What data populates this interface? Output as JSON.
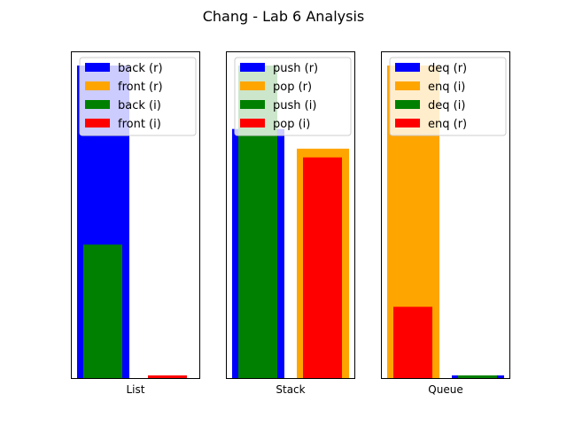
{
  "figure": {
    "title": "Chang - Lab 6 Analysis"
  },
  "chart_data": [
    {
      "type": "bar",
      "xlabel": "List",
      "ylim": [
        0,
        1
      ],
      "yticks_shown": false,
      "legend_position": "top-right",
      "series": [
        {
          "name": "back (r)",
          "color": "#0000ff",
          "values": [
            1.0,
            0.0
          ]
        },
        {
          "name": "front (r)",
          "color": "#ffa500",
          "values": [
            0.0,
            0.0
          ]
        },
        {
          "name": "back (i)",
          "color": "#008000",
          "values": [
            0.427,
            0.0
          ]
        },
        {
          "name": "front (i)",
          "color": "#ff0000",
          "values": [
            0.0,
            0.008
          ]
        }
      ]
    },
    {
      "type": "bar",
      "xlabel": "Stack",
      "ylim": [
        0,
        1
      ],
      "yticks_shown": false,
      "legend_position": "top-right",
      "series": [
        {
          "name": "push (r)",
          "color": "#0000ff",
          "values": [
            0.797,
            0.0
          ]
        },
        {
          "name": "pop (r)",
          "color": "#ffa500",
          "values": [
            0.0,
            0.734
          ]
        },
        {
          "name": "push (i)",
          "color": "#008000",
          "values": [
            1.0,
            0.0
          ]
        },
        {
          "name": "pop (i)",
          "color": "#ff0000",
          "values": [
            0.0,
            0.706
          ]
        }
      ]
    },
    {
      "type": "bar",
      "xlabel": "Queue",
      "ylim": [
        0,
        1
      ],
      "yticks_shown": false,
      "legend_position": "top-right",
      "series": [
        {
          "name": "deq (r)",
          "color": "#0000ff",
          "values": [
            0.0,
            0.006
          ]
        },
        {
          "name": "enq (i)",
          "color": "#ffa500",
          "values": [
            1.0,
            0.0
          ]
        },
        {
          "name": "deq (i)",
          "color": "#008000",
          "values": [
            0.0,
            0.006
          ]
        },
        {
          "name": "enq (r)",
          "color": "#ff0000",
          "values": [
            0.228,
            0.0
          ]
        }
      ]
    }
  ]
}
